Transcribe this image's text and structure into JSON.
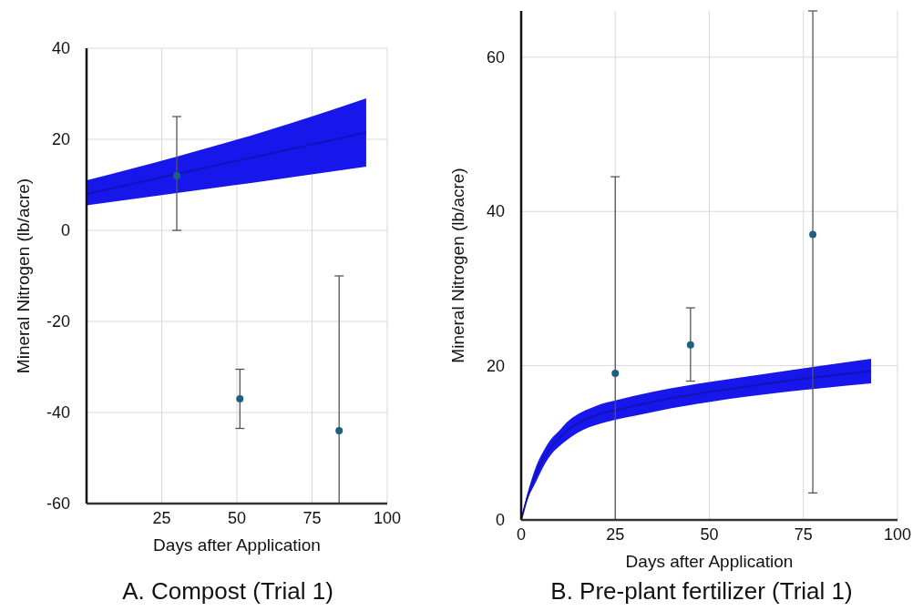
{
  "chart_data": [
    {
      "type": "line",
      "title": "A.  Compost (Trial 1)",
      "xlabel": "Days after Application",
      "ylabel": "Mineral Nitrogen (lb/acre)",
      "xlim": [
        0,
        100
      ],
      "xticks": [
        25,
        50,
        75,
        100
      ],
      "ylim": [
        -60,
        40
      ],
      "yticks": [
        -60,
        -40,
        -20,
        0,
        20,
        40
      ],
      "grid": true,
      "series": [
        {
          "color": "#1212b8",
          "x": [
            0,
            30,
            60,
            93
          ],
          "values": [
            8,
            12.4,
            16.7,
            21.5
          ],
          "lower": [
            5.5,
            8.2,
            10.9,
            14
          ],
          "upper": [
            11,
            16.2,
            21.9,
            29
          ]
        },
        {
          "type": "scatter",
          "color": "#1f6080",
          "marker": "circle",
          "x": [
            30,
            51,
            84
          ],
          "values": [
            12,
            -37,
            -44
          ],
          "errors": [
            [
              0,
              25
            ],
            [
              -43.5,
              -30.5
            ],
            [
              -60,
              -10
            ]
          ]
        }
      ]
    },
    {
      "type": "line",
      "title": "B.  Pre-plant fertilizer (Trial 1)",
      "xlabel": "Days after Application",
      "ylabel": "Mineral Nitrogen (lb/acre)",
      "xlim": [
        0,
        100
      ],
      "xticks": [
        0,
        25,
        50,
        75,
        100
      ],
      "ylim": [
        0,
        66
      ],
      "yticks": [
        0,
        20,
        40,
        60
      ],
      "grid": true,
      "series": [
        {
          "color": "#1212b8",
          "x": [
            0,
            2,
            4,
            6,
            8,
            10,
            12,
            15,
            18,
            21,
            25,
            30,
            40,
            50,
            60,
            70,
            80,
            93
          ],
          "values": [
            0,
            3.5,
            6,
            8,
            9.5,
            10.5,
            11.5,
            12.5,
            13.2,
            13.8,
            14.2,
            14.8,
            15.8,
            16.6,
            17.3,
            18,
            18.6,
            19.3
          ],
          "lower": [
            0,
            3,
            5,
            7,
            8.5,
            9.5,
            10.3,
            11.3,
            12,
            12.5,
            13,
            13.5,
            14.5,
            15.3,
            16,
            16.6,
            17.1,
            17.7
          ],
          "upper": [
            0,
            4,
            7,
            9,
            10.5,
            11.5,
            12.6,
            13.7,
            14.4,
            15,
            15.5,
            16.1,
            17.1,
            17.9,
            18.6,
            19.3,
            20,
            20.9
          ]
        },
        {
          "type": "scatter",
          "color": "#1f6080",
          "marker": "circle",
          "x": [
            25,
            45,
            77.5
          ],
          "values": [
            19,
            22.7,
            37
          ],
          "errors": [
            [
              0,
              44.5
            ],
            [
              18,
              27.5
            ],
            [
              3.5,
              66
            ]
          ]
        }
      ]
    }
  ]
}
